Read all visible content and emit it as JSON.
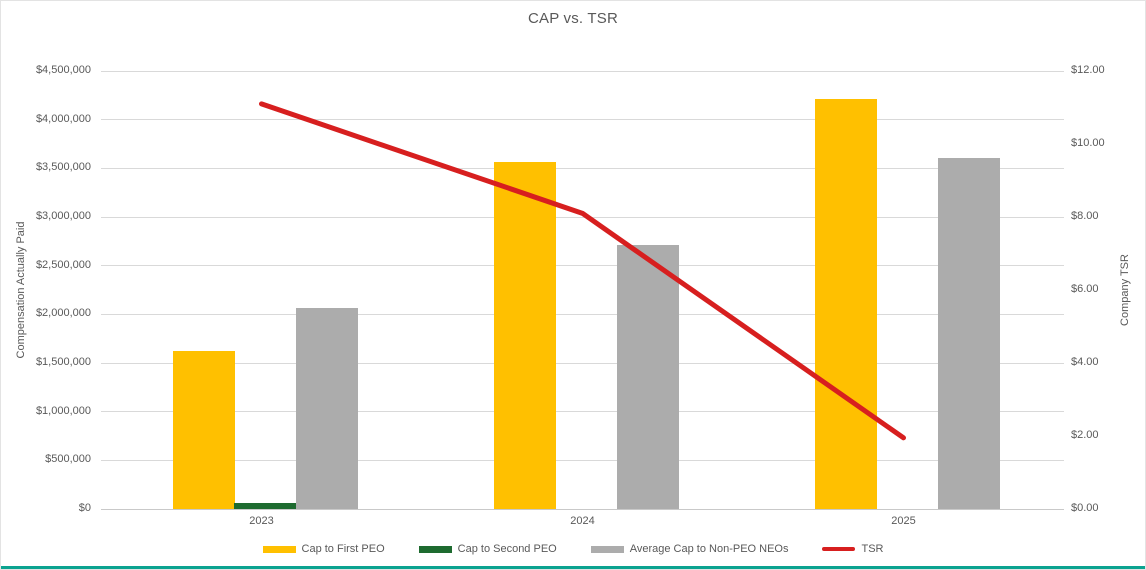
{
  "chart_data": {
    "type": "bar",
    "subtype": "combo-bar-line-dual-axis",
    "title": "CAP vs. TSR",
    "categories": [
      "2023",
      "2024",
      "2025"
    ],
    "series": [
      {
        "name": "Cap to First PEO",
        "type": "bar",
        "axis": "left",
        "color": "#FFC000",
        "values": [
          1620000,
          3570000,
          4210000
        ]
      },
      {
        "name": "Cap to Second PEO",
        "type": "bar",
        "axis": "left",
        "color": "#1E6B30",
        "values": [
          60000,
          0,
          0
        ]
      },
      {
        "name": "Average Cap to Non-PEO NEOs",
        "type": "bar",
        "axis": "left",
        "color": "#ACACAC",
        "values": [
          2060000,
          2710000,
          3610000
        ]
      },
      {
        "name": "TSR",
        "type": "line",
        "axis": "right",
        "color": "#D71F1F",
        "values": [
          11.1,
          8.1,
          1.95
        ]
      }
    ],
    "left_axis": {
      "title": "Compensation Actually Paid",
      "min": 0,
      "max": 4500000,
      "tick_step": 500000,
      "ticks": [
        {
          "value": 0,
          "label": "$0"
        },
        {
          "value": 500000,
          "label": "$500,000"
        },
        {
          "value": 1000000,
          "label": "$1,000,000"
        },
        {
          "value": 1500000,
          "label": "$1,500,000"
        },
        {
          "value": 2000000,
          "label": "$2,000,000"
        },
        {
          "value": 2500000,
          "label": "$2,500,000"
        },
        {
          "value": 3000000,
          "label": "$3,000,000"
        },
        {
          "value": 3500000,
          "label": "$3,500,000"
        },
        {
          "value": 4000000,
          "label": "$4,000,000"
        },
        {
          "value": 4500000,
          "label": "$4,500,000"
        }
      ]
    },
    "right_axis": {
      "title": "Company TSR",
      "min": 0,
      "max": 12,
      "tick_step": 2,
      "ticks": [
        {
          "value": 0,
          "label": "$0.00"
        },
        {
          "value": 2,
          "label": "$2.00"
        },
        {
          "value": 4,
          "label": "$4.00"
        },
        {
          "value": 6,
          "label": "$6.00"
        },
        {
          "value": 8,
          "label": "$8.00"
        },
        {
          "value": 10,
          "label": "$10.00"
        },
        {
          "value": 12,
          "label": "$12.00"
        }
      ]
    },
    "legend_position": "bottom",
    "grid": true,
    "gridline_color": "#D9D9D9",
    "baseline_color": "#C9C9C9",
    "text_color": "#595959",
    "accent_bar_color": "#0BA390"
  }
}
